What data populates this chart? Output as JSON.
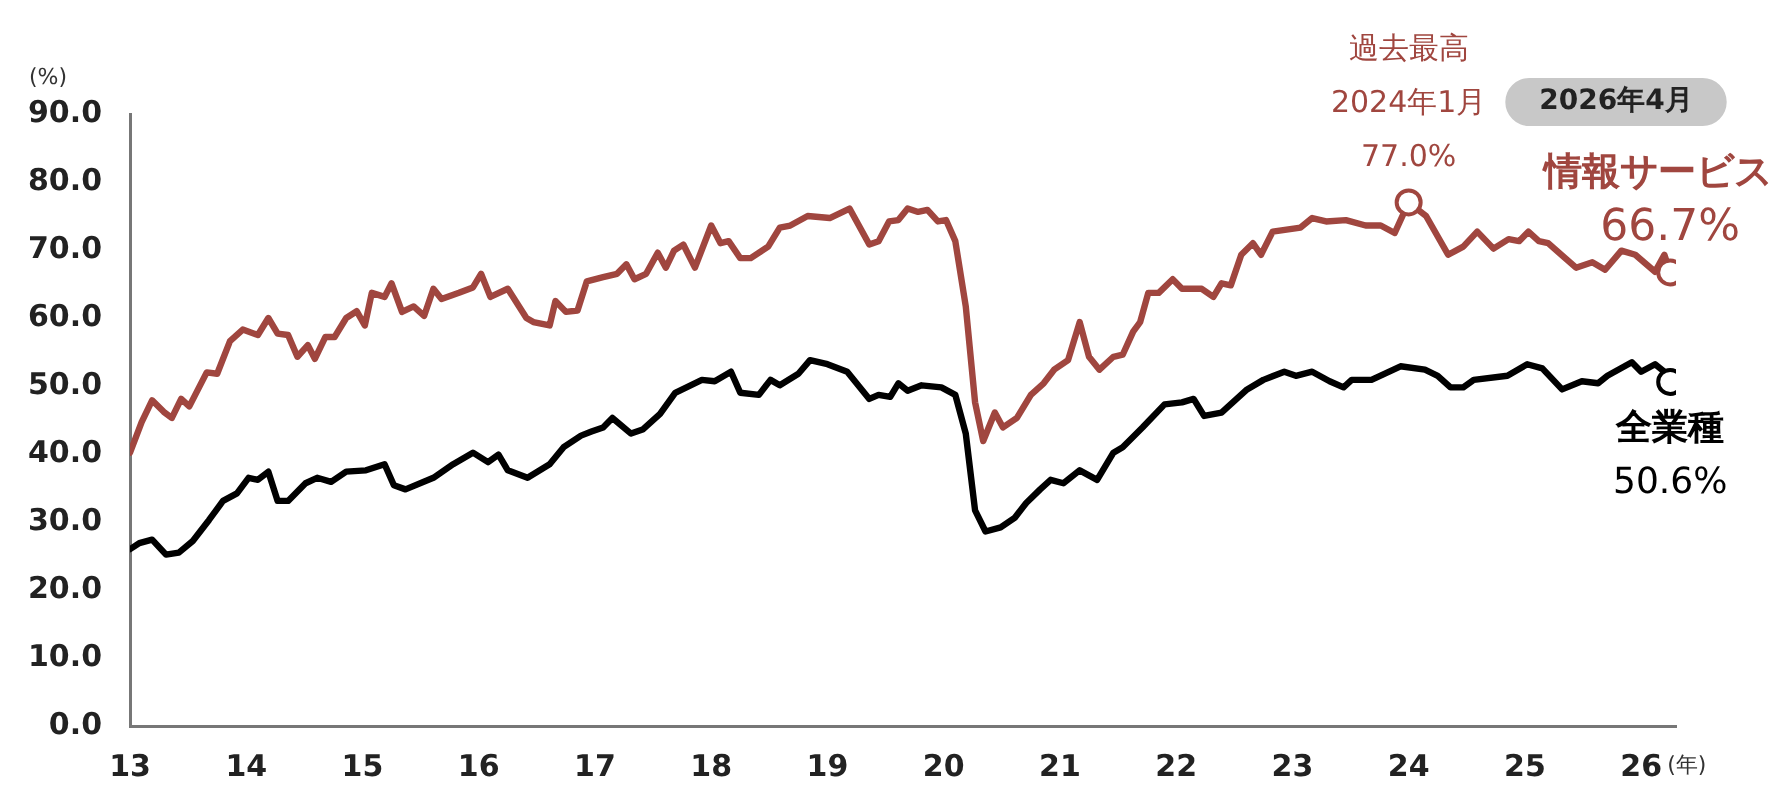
{
  "chart_data": {
    "type": "line",
    "ylabel": "(%)",
    "xlabel": "(年)",
    "xlim": [
      13,
      26.3
    ],
    "xticks": [
      13,
      14,
      15,
      16,
      17,
      18,
      19,
      20,
      21,
      22,
      23,
      24,
      25,
      26
    ],
    "ylim": [
      0,
      90
    ],
    "yticks": [
      {
        "value": 0,
        "label": "0.0"
      },
      {
        "value": 10,
        "label": "10.0"
      },
      {
        "value": 20,
        "label": "20.0"
      },
      {
        "value": 30,
        "label": "30.0"
      },
      {
        "value": 40,
        "label": "40.0"
      },
      {
        "value": 50,
        "label": "50.0"
      },
      {
        "value": 60,
        "label": "60.0"
      },
      {
        "value": 70,
        "label": "70.0"
      },
      {
        "value": 80,
        "label": "80.0"
      },
      {
        "value": 90,
        "label": "90.0"
      }
    ],
    "grid": false,
    "legend": false,
    "annotations": [
      {
        "text": "過去最高\n2024年1月",
        "x": 24,
        "y": 77
      },
      "2026年4月"
    ],
    "series": [
      {
        "name": "情報サービス",
        "color": "#a0463f",
        "x": [
          13.0,
          13.1,
          13.19,
          13.29,
          13.36,
          13.44,
          13.51,
          13.66,
          13.75,
          13.86,
          13.97,
          14.1,
          14.19,
          14.27,
          14.36,
          14.44,
          14.53,
          14.59,
          14.68,
          14.76,
          14.86,
          14.95,
          15.02,
          15.08,
          15.19,
          15.25,
          15.34,
          15.44,
          15.53,
          15.61,
          15.68,
          15.83,
          15.95,
          16.02,
          16.1,
          16.25,
          16.41,
          16.47,
          16.61,
          16.66,
          16.75,
          16.85,
          16.93,
          17.07,
          17.19,
          17.27,
          17.34,
          17.44,
          17.54,
          17.61,
          17.68,
          17.76,
          17.86,
          18.0,
          18.08,
          18.15,
          18.25,
          18.34,
          18.49,
          18.59,
          18.68,
          18.83,
          19.02,
          19.19,
          19.36,
          19.44,
          19.53,
          19.61,
          19.69,
          19.78,
          19.86,
          19.95,
          20.02,
          20.1,
          20.19,
          20.27,
          20.34,
          20.44,
          20.51,
          20.63,
          20.75,
          20.86,
          20.95,
          21.07,
          21.17,
          21.25,
          21.34,
          21.46,
          21.54,
          21.63,
          21.69,
          21.76,
          21.85,
          21.97,
          22.05,
          22.22,
          22.32,
          22.39,
          22.47,
          22.56,
          22.66,
          22.73,
          22.83,
          23.07,
          23.17,
          23.29,
          23.46,
          23.63,
          23.76,
          23.88,
          24.0,
          24.15,
          24.34,
          24.47,
          24.59,
          24.73,
          24.86,
          24.95,
          25.03,
          25.12,
          25.2,
          25.44,
          25.58,
          25.69,
          25.83,
          25.95,
          26.12,
          26.2,
          26.25
        ],
        "values": [
          40.2,
          44.7,
          47.9,
          46.2,
          45.3,
          48.1,
          47,
          52,
          51.8,
          56.6,
          58.3,
          57.5,
          60,
          57.7,
          57.5,
          54.3,
          56,
          54,
          57.2,
          57.2,
          60,
          61,
          58.9,
          63.7,
          63.1,
          65.1,
          60.9,
          61.7,
          60.3,
          64.3,
          62.8,
          63.7,
          64.5,
          66.5,
          63.1,
          64.3,
          60,
          59.4,
          58.9,
          62.5,
          60.9,
          61.1,
          65.4,
          66,
          66.5,
          67.9,
          65.7,
          66.5,
          69.6,
          67.4,
          69.9,
          70.8,
          67.4,
          73.6,
          71,
          71.3,
          68.8,
          68.8,
          70.5,
          73.3,
          73.6,
          75,
          74.7,
          76.1,
          70.8,
          71.3,
          74.2,
          74.4,
          76.1,
          75.6,
          75.9,
          74.2,
          74.4,
          71.3,
          61.7,
          47.6,
          41.9,
          46.1,
          43.9,
          45.3,
          48.7,
          50.4,
          52.4,
          53.8,
          59.4,
          54.3,
          52.4,
          54.3,
          54.6,
          58,
          59.4,
          63.7,
          63.7,
          65.7,
          64.3,
          64.3,
          63.1,
          65.1,
          64.8,
          69.3,
          71,
          69.3,
          72.7,
          73.3,
          74.7,
          74.2,
          74.4,
          73.6,
          73.6,
          72.5,
          77.0,
          75,
          69.3,
          70.5,
          72.7,
          70.2,
          71.6,
          71.3,
          72.7,
          71.3,
          71,
          67.4,
          68.2,
          67.1,
          69.9,
          69.3,
          66.8,
          69.3,
          66.7
        ],
        "value_labels": [
          null,
          null,
          null,
          null,
          null,
          null,
          null,
          null,
          null,
          null,
          null,
          null,
          null,
          null,
          null,
          null,
          null,
          null,
          null,
          null,
          null,
          null,
          null,
          null,
          null,
          null,
          null,
          null,
          null,
          null,
          null,
          null,
          null,
          null,
          null,
          null,
          null,
          null,
          null,
          null,
          null,
          null,
          null,
          null,
          null,
          null,
          null,
          null,
          null,
          null,
          null,
          null,
          null,
          null,
          null,
          null,
          null,
          null,
          null,
          null,
          null,
          null,
          null,
          null,
          null,
          null,
          null,
          null,
          null,
          null,
          null,
          null,
          null,
          null,
          null,
          null,
          null,
          null,
          null,
          null,
          null,
          null,
          null,
          null,
          null,
          null,
          null,
          null,
          null,
          null,
          null,
          null,
          null,
          null,
          null,
          null,
          null,
          null,
          null,
          null,
          null,
          null,
          null,
          null,
          null,
          null,
          null,
          null,
          null,
          null,
          "77.0%",
          null,
          null,
          null,
          null,
          null,
          null,
          null,
          null,
          null,
          null,
          null,
          null,
          null,
          null,
          null,
          null,
          null,
          "66.7%"
        ]
      },
      {
        "name": "全業種",
        "color": "#000000",
        "x": [
          13.0,
          13.08,
          13.19,
          13.31,
          13.42,
          13.54,
          13.68,
          13.8,
          13.92,
          14.02,
          14.1,
          14.19,
          14.27,
          14.36,
          14.51,
          14.61,
          14.73,
          14.86,
          15.03,
          15.19,
          15.27,
          15.37,
          15.61,
          15.78,
          15.95,
          16.08,
          16.17,
          16.25,
          16.42,
          16.61,
          16.73,
          16.88,
          16.97,
          17.07,
          17.15,
          17.31,
          17.41,
          17.56,
          17.69,
          17.92,
          18.03,
          18.17,
          18.25,
          18.41,
          18.51,
          18.59,
          18.75,
          18.85,
          19.0,
          19.17,
          19.36,
          19.44,
          19.54,
          19.61,
          19.69,
          19.81,
          19.98,
          20.1,
          20.19,
          20.27,
          20.36,
          20.49,
          20.61,
          20.71,
          20.83,
          20.92,
          21.03,
          21.17,
          21.32,
          21.46,
          21.54,
          21.71,
          21.9,
          22.05,
          22.15,
          22.24,
          22.39,
          22.61,
          22.75,
          22.93,
          23.03,
          23.17,
          23.32,
          23.44,
          23.51,
          23.68,
          23.93,
          24.14,
          24.25,
          24.36,
          24.47,
          24.56,
          24.85,
          25.02,
          25.15,
          25.32,
          25.49,
          25.63,
          25.71,
          25.92,
          26.0,
          26.12,
          26.2,
          26.25
        ],
        "values": [
          26.0,
          26.9,
          27.4,
          25.2,
          25.5,
          27.2,
          30.3,
          33.1,
          34.2,
          36.5,
          36.2,
          37.4,
          33.1,
          33.1,
          35.7,
          36.5,
          35.9,
          37.4,
          37.6,
          38.5,
          35.4,
          34.8,
          36.5,
          38.5,
          40.2,
          38.8,
          39.9,
          37.6,
          36.5,
          38.5,
          41,
          42.7,
          43.3,
          43.9,
          45.3,
          43,
          43.6,
          45.9,
          49,
          50.9,
          50.7,
          52.1,
          49,
          48.7,
          50.9,
          50.1,
          51.8,
          53.8,
          53.2,
          52.1,
          48.1,
          48.7,
          48.4,
          50.4,
          49.3,
          50.1,
          49.8,
          48.7,
          43,
          31.7,
          28.6,
          29.2,
          30.6,
          32.8,
          34.8,
          36.2,
          35.7,
          37.6,
          36.2,
          40.2,
          41,
          43.9,
          47.3,
          47.6,
          48.1,
          45.6,
          46.1,
          49.5,
          50.9,
          52.1,
          51.5,
          52.1,
          50.7,
          49.8,
          50.9,
          50.9,
          52.9,
          52.4,
          51.5,
          49.8,
          49.8,
          50.9,
          51.5,
          53.2,
          52.6,
          49.5,
          50.7,
          50.4,
          51.5,
          53.5,
          52.1,
          53.2,
          52.1,
          50.6
        ],
        "value_labels": [
          null,
          null,
          null,
          null,
          null,
          null,
          null,
          null,
          null,
          null,
          null,
          null,
          null,
          null,
          null,
          null,
          null,
          null,
          null,
          null,
          null,
          null,
          null,
          null,
          null,
          null,
          null,
          null,
          null,
          null,
          null,
          null,
          null,
          null,
          null,
          null,
          null,
          null,
          null,
          null,
          null,
          null,
          null,
          null,
          null,
          null,
          null,
          null,
          null,
          null,
          null,
          null,
          null,
          null,
          null,
          null,
          null,
          null,
          null,
          null,
          null,
          null,
          null,
          null,
          null,
          null,
          null,
          null,
          null,
          null,
          null,
          null,
          null,
          null,
          null,
          null,
          null,
          null,
          null,
          null,
          null,
          null,
          null,
          null,
          null,
          null,
          null,
          null,
          null,
          null,
          null,
          null,
          null,
          null,
          null,
          null,
          null,
          null,
          null,
          null,
          null,
          null,
          null,
          "50.6%"
        ]
      }
    ]
  }
}
